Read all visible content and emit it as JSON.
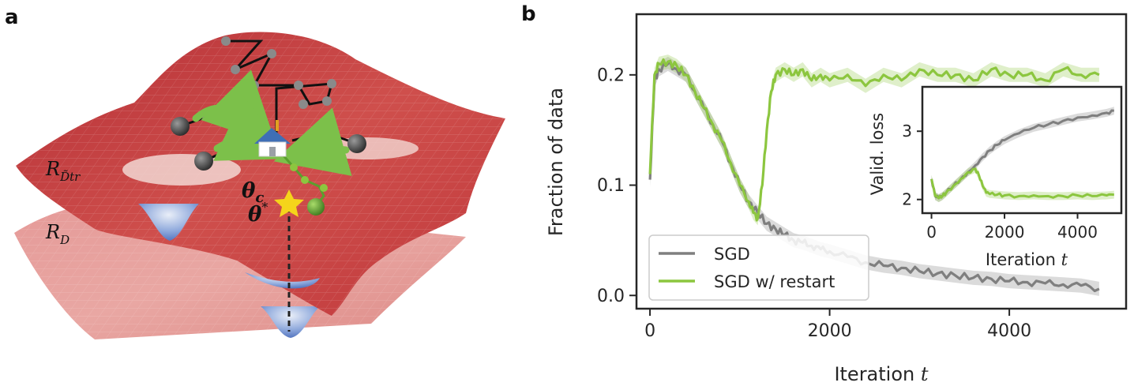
{
  "panel_a": {
    "label": "a",
    "surface_top_label": "R",
    "surface_top_sub": "D̃tr",
    "surface_bottom_label": "R",
    "surface_bottom_sub": "D",
    "theta_c": "θ",
    "theta_c_sub": "c",
    "theta_star": "θ",
    "theta_star_sup": "*",
    "colors": {
      "surface": "#c9474a",
      "basin": "#4f78c4",
      "arrow": "#7cc04a",
      "path": "#111111",
      "node": "#808080"
    }
  },
  "panel_b": {
    "label": "b",
    "chart_data": [
      {
        "type": "line",
        "xlabel": "Iteration t",
        "xlabel_main": "Iteration",
        "xlabel_var": "t",
        "ylabel": "Fraction of data",
        "xlim": [
          -150,
          5300
        ],
        "ylim": [
          -0.012,
          0.255
        ],
        "xticks": [
          0,
          2000,
          4000
        ],
        "xtick_labels": [
          "0",
          "2000",
          "4000"
        ],
        "yticks": [
          0.0,
          0.1,
          0.2
        ],
        "ytick_labels": [
          "0.0",
          "0.1",
          "0.2"
        ],
        "grid": false,
        "legend": "lower-left",
        "series": [
          {
            "name": "SGD",
            "color": "#7f7f7f",
            "x": [
              0,
              50,
              100,
              200,
              300,
              400,
              500,
              600,
              700,
              800,
              900,
              1000,
              1100,
              1200,
              1300,
              1400,
              1500,
              1600,
              1700,
              1800,
              1900,
              2000,
              2200,
              2400,
              2600,
              2800,
              3000,
              3200,
              3400,
              3600,
              3800,
              4000,
              4200,
              4400,
              4600,
              4800,
              5000
            ],
            "y": [
              0.105,
              0.195,
              0.205,
              0.21,
              0.205,
              0.2,
              0.185,
              0.17,
              0.155,
              0.14,
              0.12,
              0.1,
              0.085,
              0.075,
              0.065,
              0.06,
              0.055,
              0.05,
              0.048,
              0.045,
              0.042,
              0.04,
              0.035,
              0.03,
              0.027,
              0.025,
              0.022,
              0.02,
              0.018,
              0.016,
              0.015,
              0.013,
              0.012,
              0.011,
              0.01,
              0.009,
              0.006
            ]
          },
          {
            "name": "SGD w/ restart",
            "color": "#8cc63f",
            "x": [
              0,
              50,
              100,
              200,
              300,
              400,
              500,
              600,
              700,
              800,
              900,
              1000,
              1100,
              1150,
              1200,
              1250,
              1300,
              1350,
              1400,
              1500,
              1600,
              1700,
              1800,
              1900,
              2000,
              2200,
              2400,
              2600,
              2800,
              3000,
              3200,
              3400,
              3600,
              3800,
              4000,
              4200,
              4400,
              4600,
              4800,
              5000
            ],
            "y": [
              0.11,
              0.2,
              0.21,
              0.212,
              0.208,
              0.2,
              0.185,
              0.17,
              0.155,
              0.14,
              0.12,
              0.1,
              0.085,
              0.075,
              0.07,
              0.1,
              0.15,
              0.185,
              0.2,
              0.205,
              0.2,
              0.205,
              0.195,
              0.2,
              0.195,
              0.2,
              0.19,
              0.2,
              0.195,
              0.205,
              0.2,
              0.2,
              0.195,
              0.205,
              0.2,
              0.2,
              0.195,
              0.205,
              0.2,
              0.2
            ]
          }
        ]
      },
      {
        "type": "line",
        "xlabel": "Iteration t",
        "xlabel_main": "Iteration",
        "xlabel_var": "t",
        "ylabel": "Valid. loss",
        "xlim": [
          -250,
          5200
        ],
        "ylim": [
          1.8,
          3.65
        ],
        "xticks": [
          0,
          2000,
          4000
        ],
        "xtick_labels": [
          "0",
          "2000",
          "4000"
        ],
        "yticks": [
          2,
          3
        ],
        "ytick_labels": [
          "2",
          "3"
        ],
        "grid": false,
        "series": [
          {
            "name": "SGD",
            "color": "#7f7f7f",
            "x": [
              0,
              100,
              200,
              300,
              400,
              600,
              800,
              1000,
              1200,
              1400,
              1600,
              1800,
              2000,
              2400,
              2800,
              3200,
              3600,
              4000,
              4400,
              4800,
              5000
            ],
            "y": [
              2.3,
              2.05,
              2.02,
              2.05,
              2.1,
              2.2,
              2.3,
              2.4,
              2.5,
              2.62,
              2.72,
              2.8,
              2.87,
              2.97,
              3.05,
              3.1,
              3.15,
              3.2,
              3.23,
              3.27,
              3.3
            ]
          },
          {
            "name": "SGD w/ restart",
            "color": "#8cc63f",
            "x": [
              0,
              100,
              200,
              300,
              400,
              600,
              800,
              1000,
              1200,
              1300,
              1400,
              1500,
              1600,
              1800,
              2000,
              2400,
              2800,
              3200,
              3600,
              4000,
              4400,
              4800,
              5000
            ],
            "y": [
              2.3,
              2.05,
              2.02,
              2.05,
              2.1,
              2.2,
              2.3,
              2.4,
              2.45,
              2.35,
              2.2,
              2.1,
              2.08,
              2.07,
              2.06,
              2.05,
              2.06,
              2.05,
              2.05,
              2.06,
              2.05,
              2.06,
              2.07
            ]
          }
        ]
      }
    ]
  }
}
